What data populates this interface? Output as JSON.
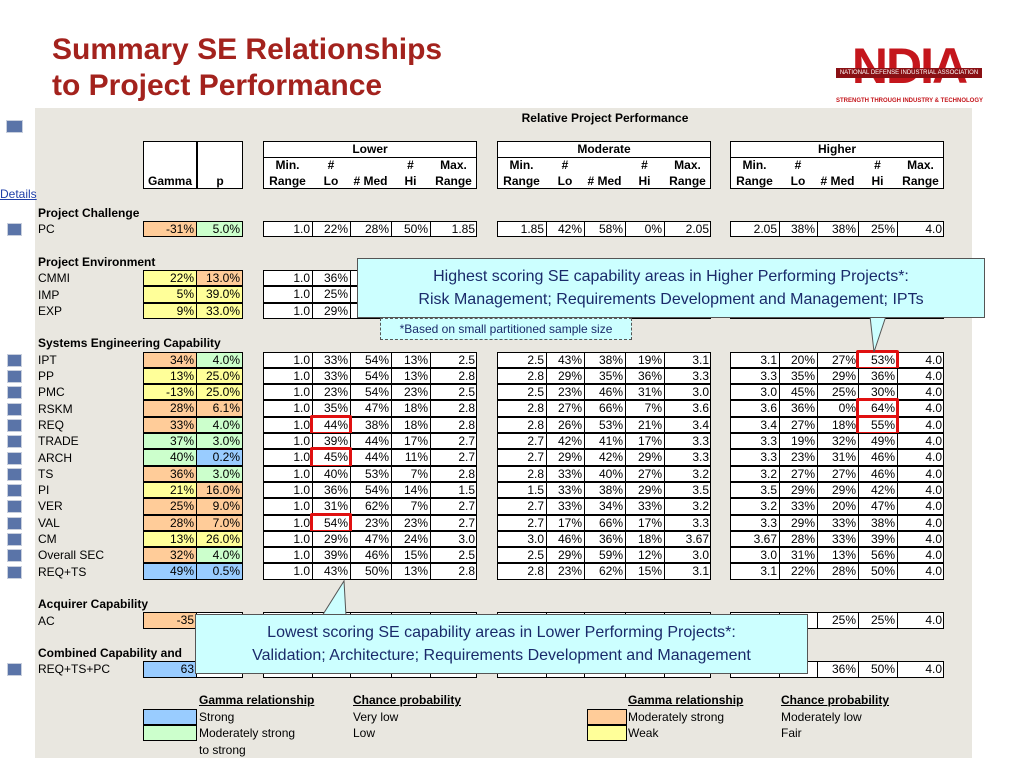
{
  "title": [
    "Summary SE Relationships",
    "to Project Performance"
  ],
  "logo": {
    "name": "NDIA",
    "org": "NATIONAL DEFENSE INDUSTRIAL ASSOCIATION",
    "tagline": "STRENGTH THROUGH INDUSTRY & TECHNOLOGY"
  },
  "details_link": "Details",
  "table": {
    "caption": "Relative Project Performance",
    "stat_headers": [
      "Gamma",
      "p"
    ],
    "groups": [
      "Lower",
      "Moderate",
      "Higher"
    ],
    "columns": [
      [
        "Min.",
        "Range"
      ],
      [
        "#",
        "Lo"
      ],
      [
        "# Med"
      ],
      [
        "#",
        "Hi"
      ],
      [
        "Max.",
        "Range"
      ]
    ],
    "sections": [
      {
        "title": "Project Challenge",
        "rows": [
          {
            "label": "PC",
            "button": true,
            "gamma": "-31%",
            "p": "5.0%",
            "gamma_color": "#ffcc99",
            "p_color": "#ccffcc",
            "cells": [
              "1.0",
              "22%",
              "28%",
              "50%",
              "1.85",
              "1.85",
              "42%",
              "58%",
              "0%",
              "2.05",
              "2.05",
              "38%",
              "38%",
              "25%",
              "4.0"
            ]
          }
        ]
      },
      {
        "title": "Project Environment",
        "rows": [
          {
            "label": "CMMI",
            "button": false,
            "gamma": "22%",
            "p": "13.0%",
            "gamma_color": "#ffff99",
            "p_color": "#ffcc99",
            "cells": [
              "1.0",
              "36%",
              null,
              null,
              null,
              null,
              null,
              null,
              null,
              null,
              null,
              null,
              null,
              null,
              null
            ]
          },
          {
            "label": "IMP",
            "button": false,
            "gamma": "5%",
            "p": "39.0%",
            "gamma_color": "#ffff99",
            "p_color": "#ffff99",
            "cells": [
              "1.0",
              "25%",
              null,
              null,
              null,
              null,
              null,
              null,
              null,
              null,
              null,
              null,
              null,
              null,
              null
            ]
          },
          {
            "label": "EXP",
            "button": false,
            "gamma": "9%",
            "p": "33.0%",
            "gamma_color": "#ffff99",
            "p_color": "#ffff99",
            "cells": [
              "1.0",
              "29%",
              null,
              null,
              null,
              null,
              null,
              null,
              null,
              null,
              null,
              null,
              null,
              null,
              null
            ]
          }
        ]
      },
      {
        "title": "Systems Engineering Capability",
        "rows": [
          {
            "label": "IPT",
            "button": true,
            "gamma": "34%",
            "p": "4.0%",
            "gamma_color": "#ffcc99",
            "p_color": "#ccffcc",
            "cells": [
              "1.0",
              "33%",
              "54%",
              "13%",
              "2.5",
              "2.5",
              "43%",
              "38%",
              "19%",
              "3.1",
              "3.1",
              "20%",
              "27%",
              "53%",
              "4.0"
            ],
            "boxed": [
              13
            ]
          },
          {
            "label": "PP",
            "button": true,
            "gamma": "13%",
            "p": "25.0%",
            "gamma_color": "#ffff99",
            "p_color": "#ffff99",
            "cells": [
              "1.0",
              "33%",
              "54%",
              "13%",
              "2.8",
              "2.8",
              "29%",
              "35%",
              "36%",
              "3.3",
              "3.3",
              "35%",
              "29%",
              "36%",
              "4.0"
            ]
          },
          {
            "label": "PMC",
            "button": true,
            "gamma": "-13%",
            "p": "25.0%",
            "gamma_color": "#ffff99",
            "p_color": "#ffff99",
            "cells": [
              "1.0",
              "23%",
              "54%",
              "23%",
              "2.5",
              "2.5",
              "23%",
              "46%",
              "31%",
              "3.0",
              "3.0",
              "45%",
              "25%",
              "30%",
              "4.0"
            ]
          },
          {
            "label": "RSKM",
            "button": true,
            "gamma": "28%",
            "p": "6.1%",
            "gamma_color": "#ffcc99",
            "p_color": "#ffcc99",
            "cells": [
              "1.0",
              "35%",
              "47%",
              "18%",
              "2.8",
              "2.8",
              "27%",
              "66%",
              "7%",
              "3.6",
              "3.6",
              "36%",
              "0%",
              "64%",
              "4.0"
            ],
            "boxed": [
              13
            ]
          },
          {
            "label": "REQ",
            "button": true,
            "gamma": "33%",
            "p": "4.0%",
            "gamma_color": "#ffcc99",
            "p_color": "#ccffcc",
            "cells": [
              "1.0",
              "44%",
              "38%",
              "18%",
              "2.8",
              "2.8",
              "26%",
              "53%",
              "21%",
              "3.4",
              "3.4",
              "27%",
              "18%",
              "55%",
              "4.0"
            ],
            "boxed": [
              1,
              13
            ]
          },
          {
            "label": "TRADE",
            "button": true,
            "gamma": "37%",
            "p": "3.0%",
            "gamma_color": "#ccffcc",
            "p_color": "#ccffcc",
            "cells": [
              "1.0",
              "39%",
              "44%",
              "17%",
              "2.7",
              "2.7",
              "42%",
              "41%",
              "17%",
              "3.3",
              "3.3",
              "19%",
              "32%",
              "49%",
              "4.0"
            ]
          },
          {
            "label": "ARCH",
            "button": true,
            "gamma": "40%",
            "p": "0.2%",
            "gamma_color": "#ccffcc",
            "p_color": "#99ccff",
            "cells": [
              "1.0",
              "45%",
              "44%",
              "11%",
              "2.7",
              "2.7",
              "29%",
              "42%",
              "29%",
              "3.3",
              "3.3",
              "23%",
              "31%",
              "46%",
              "4.0"
            ],
            "boxed": [
              1
            ]
          },
          {
            "label": "TS",
            "button": true,
            "gamma": "36%",
            "p": "3.0%",
            "gamma_color": "#ffcc99",
            "p_color": "#ccffcc",
            "cells": [
              "1.0",
              "40%",
              "53%",
              "7%",
              "2.8",
              "2.8",
              "33%",
              "40%",
              "27%",
              "3.2",
              "3.2",
              "27%",
              "27%",
              "46%",
              "4.0"
            ]
          },
          {
            "label": "PI",
            "button": true,
            "gamma": "21%",
            "p": "16.0%",
            "gamma_color": "#ffff99",
            "p_color": "#ffcc99",
            "cells": [
              "1.0",
              "36%",
              "54%",
              "14%",
              "1.5",
              "1.5",
              "33%",
              "38%",
              "29%",
              "3.5",
              "3.5",
              "29%",
              "29%",
              "42%",
              "4.0"
            ]
          },
          {
            "label": "VER",
            "button": true,
            "gamma": "25%",
            "p": "9.0%",
            "gamma_color": "#ffcc99",
            "p_color": "#ffcc99",
            "cells": [
              "1.0",
              "31%",
              "62%",
              "7%",
              "2.7",
              "2.7",
              "33%",
              "34%",
              "33%",
              "3.2",
              "3.2",
              "33%",
              "20%",
              "47%",
              "4.0"
            ]
          },
          {
            "label": "VAL",
            "button": true,
            "gamma": "28%",
            "p": "7.0%",
            "gamma_color": "#ffcc99",
            "p_color": "#ffcc99",
            "cells": [
              "1.0",
              "54%",
              "23%",
              "23%",
              "2.7",
              "2.7",
              "17%",
              "66%",
              "17%",
              "3.3",
              "3.3",
              "29%",
              "33%",
              "38%",
              "4.0"
            ],
            "boxed": [
              1
            ]
          },
          {
            "label": "CM",
            "button": true,
            "gamma": "13%",
            "p": "26.0%",
            "gamma_color": "#ffff99",
            "p_color": "#ffff99",
            "cells": [
              "1.0",
              "29%",
              "47%",
              "24%",
              "3.0",
              "3.0",
              "46%",
              "36%",
              "18%",
              "3.67",
              "3.67",
              "28%",
              "33%",
              "39%",
              "4.0"
            ]
          },
          {
            "label": "Overall SEC",
            "button": true,
            "gamma": "32%",
            "p": "4.0%",
            "gamma_color": "#ffcc99",
            "p_color": "#ccffcc",
            "cells": [
              "1.0",
              "39%",
              "46%",
              "15%",
              "2.5",
              "2.5",
              "29%",
              "59%",
              "12%",
              "3.0",
              "3.0",
              "31%",
              "13%",
              "56%",
              "4.0"
            ]
          },
          {
            "label": "REQ+TS",
            "button": true,
            "gamma": "49%",
            "p": "0.5%",
            "gamma_color": "#99ccff",
            "p_color": "#99ccff",
            "cells": [
              "1.0",
              "43%",
              "50%",
              "13%",
              "2.8",
              "2.8",
              "23%",
              "62%",
              "15%",
              "3.1",
              "3.1",
              "22%",
              "28%",
              "50%",
              "4.0"
            ]
          }
        ]
      },
      {
        "title": "Acquirer Capability",
        "rows": [
          {
            "label": "AC",
            "button": false,
            "gamma": "-35",
            "p": null,
            "gamma_color": "#ffcc99",
            "p_color": null,
            "cells": [
              null,
              null,
              null,
              null,
              null,
              null,
              null,
              null,
              null,
              null,
              null,
              null,
              "25%",
              "25%",
              "4.0"
            ]
          }
        ]
      },
      {
        "title": "Combined Capability and",
        "rows": [
          {
            "label": "REQ+TS+PC",
            "button": true,
            "gamma": "63",
            "p": null,
            "gamma_color": "#99ccff",
            "p_color": null,
            "cells": [
              null,
              null,
              null,
              null,
              null,
              null,
              null,
              null,
              null,
              null,
              null,
              null,
              "36%",
              "50%",
              "4.0"
            ]
          }
        ]
      }
    ]
  },
  "callouts": {
    "highest": [
      "Highest scoring SE capability areas in Higher Performing Projects*:",
      "Risk Management; Requirements Development and Management; IPTs"
    ],
    "note": "*Based on small partitioned sample size",
    "lowest": [
      "Lowest scoring SE capability areas in Lower Performing Projects*:",
      "Validation; Architecture; Requirements Development and Management"
    ]
  },
  "legend": [
    {
      "headers": [
        "Gamma relationship",
        "Chance probability"
      ],
      "items": [
        {
          "color": "#99ccff",
          "gamma": [
            "Strong"
          ],
          "chance": "Very low"
        },
        {
          "color": "#ccffcc",
          "gamma": [
            "Moderately strong",
            "to strong"
          ],
          "chance": "Low"
        }
      ]
    },
    {
      "headers": [
        "Gamma relationship",
        "Chance probability"
      ],
      "items": [
        {
          "color": "#ffcc99",
          "gamma": [
            "Moderately strong"
          ],
          "chance": "Moderately low"
        },
        {
          "color": "#ffff99",
          "gamma": [
            "Weak"
          ],
          "chance": "Fair"
        }
      ]
    }
  ]
}
